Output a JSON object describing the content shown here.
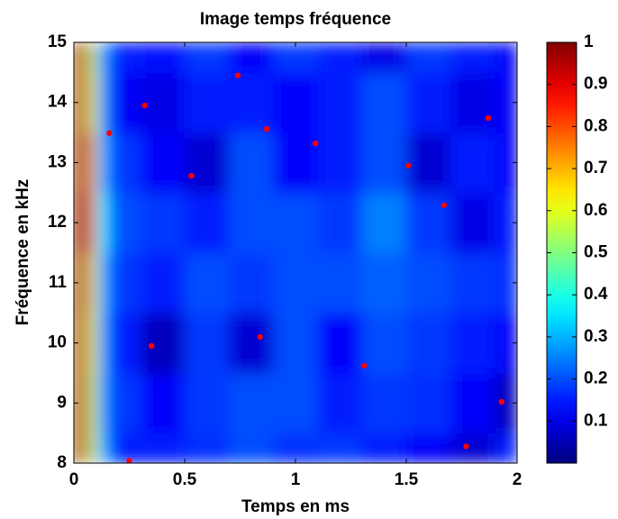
{
  "chart_data": {
    "type": "heatmap",
    "title": "Image temps fréquence",
    "xlabel": "Temps en ms",
    "ylabel": "Fréquence en kHz",
    "x": [
      0,
      0.04,
      0.08,
      0.12,
      0.2,
      0.4,
      0.6,
      0.8,
      1.0,
      1.2,
      1.4,
      1.6,
      1.8,
      2.0
    ],
    "y": [
      8,
      9,
      10,
      11,
      12,
      13,
      14,
      15
    ],
    "z": [
      [
        1,
        0.95,
        0.6,
        0.3,
        0.15,
        0.15,
        0.17,
        0.2,
        0.17,
        0.18,
        0.15,
        0.12,
        0.08,
        0.15
      ],
      [
        1,
        0.95,
        0.6,
        0.28,
        0.18,
        0.12,
        0.18,
        0.2,
        0.2,
        0.15,
        0.18,
        0.17,
        0.12,
        0.06
      ],
      [
        1,
        0.95,
        0.62,
        0.28,
        0.15,
        0.06,
        0.18,
        0.08,
        0.2,
        0.12,
        0.2,
        0.18,
        0.15,
        0.12
      ],
      [
        1,
        0.96,
        0.65,
        0.3,
        0.18,
        0.15,
        0.2,
        0.18,
        0.2,
        0.2,
        0.22,
        0.2,
        0.18,
        0.17
      ],
      [
        1,
        0.97,
        0.75,
        0.35,
        0.2,
        0.18,
        0.15,
        0.2,
        0.2,
        0.18,
        0.25,
        0.18,
        0.1,
        0.15
      ],
      [
        1,
        0.96,
        0.7,
        0.3,
        0.18,
        0.12,
        0.08,
        0.2,
        0.12,
        0.15,
        0.2,
        0.08,
        0.15,
        0.12
      ],
      [
        1,
        0.95,
        0.62,
        0.28,
        0.12,
        0.1,
        0.15,
        0.15,
        0.12,
        0.15,
        0.2,
        0.15,
        0.1,
        0.12
      ],
      [
        1,
        0.95,
        0.6,
        0.28,
        0.15,
        0.14,
        0.18,
        0.12,
        0.18,
        0.15,
        0.1,
        0.18,
        0.15,
        0.12
      ]
    ],
    "points": {
      "color": "#ff0000",
      "x": [
        0.16,
        0.32,
        0.74,
        0.53,
        0.87,
        1.09,
        1.51,
        1.67,
        1.87,
        0.35,
        0.84,
        1.31,
        1.93,
        1.77,
        0.25
      ],
      "y": [
        13.49,
        13.95,
        14.45,
        12.78,
        13.56,
        13.32,
        12.95,
        12.29,
        13.74,
        9.95,
        10.1,
        9.62,
        9.02,
        8.28,
        8.04
      ]
    },
    "xlim": [
      0,
      2
    ],
    "xticks": [
      0,
      0.5,
      1,
      1.5,
      2
    ],
    "ylim": [
      8,
      15
    ],
    "yticks": [
      8,
      9,
      10,
      11,
      12,
      13,
      14,
      15
    ],
    "clim": [
      0,
      1
    ],
    "cticks": [
      0.1,
      0.2,
      0.3,
      0.4,
      0.5,
      0.6,
      0.7,
      0.8,
      0.9,
      1
    ],
    "colormap": "jet"
  }
}
